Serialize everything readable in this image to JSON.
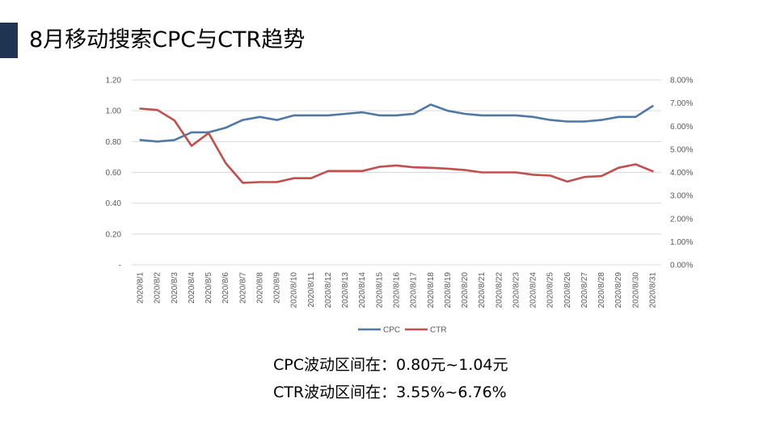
{
  "slide": {
    "title": "8月移动搜索CPC与CTR趋势",
    "accent_color": "#1f3452"
  },
  "summary": {
    "cpc_range": "CPC波动区间在：0.80元~1.04元",
    "ctr_range": "CTR波动区间在：3.55%~6.76%"
  },
  "chart_data": {
    "type": "line",
    "title": "",
    "categories": [
      "2020/8/1",
      "2020/8/2",
      "2020/8/3",
      "2020/8/4",
      "2020/8/5",
      "2020/8/6",
      "2020/8/7",
      "2020/8/8",
      "2020/8/9",
      "2020/8/10",
      "2020/8/11",
      "2020/8/12",
      "2020/8/13",
      "2020/8/14",
      "2020/8/15",
      "2020/8/16",
      "2020/8/17",
      "2020/8/18",
      "2020/8/19",
      "2020/8/20",
      "2020/8/21",
      "2020/8/22",
      "2020/8/23",
      "2020/8/24",
      "2020/8/25",
      "2020/8/26",
      "2020/8/27",
      "2020/8/28",
      "2020/8/29",
      "2020/8/30",
      "2020/8/31"
    ],
    "left_axis": {
      "ylim": [
        0,
        1.2
      ],
      "ticks": [
        "-",
        "0.20",
        "0.40",
        "0.60",
        "0.80",
        "1.00",
        "1.20"
      ]
    },
    "right_axis": {
      "ylim": [
        0,
        8
      ],
      "ticks": [
        "0.00%",
        "1.00%",
        "2.00%",
        "3.00%",
        "4.00%",
        "5.00%",
        "6.00%",
        "7.00%",
        "8.00%"
      ]
    },
    "grid": true,
    "legend_position": "bottom",
    "series": [
      {
        "name": "CPC",
        "axis": "left",
        "color": "#4e79a7",
        "values": [
          0.81,
          0.8,
          0.81,
          0.86,
          0.86,
          0.89,
          0.94,
          0.96,
          0.94,
          0.97,
          0.97,
          0.97,
          0.98,
          0.99,
          0.97,
          0.97,
          0.98,
          1.04,
          1.0,
          0.98,
          0.97,
          0.97,
          0.97,
          0.96,
          0.94,
          0.93,
          0.93,
          0.94,
          0.96,
          0.96,
          1.03
        ]
      },
      {
        "name": "CTR",
        "axis": "right",
        "color": "#c0504d",
        "values": [
          6.76,
          6.7,
          6.25,
          5.15,
          5.7,
          4.4,
          3.55,
          3.58,
          3.58,
          3.75,
          3.75,
          4.06,
          4.06,
          4.06,
          4.24,
          4.3,
          4.22,
          4.2,
          4.16,
          4.1,
          4.0,
          4.0,
          4.0,
          3.9,
          3.86,
          3.6,
          3.8,
          3.84,
          4.2,
          4.35,
          4.05
        ]
      }
    ]
  }
}
